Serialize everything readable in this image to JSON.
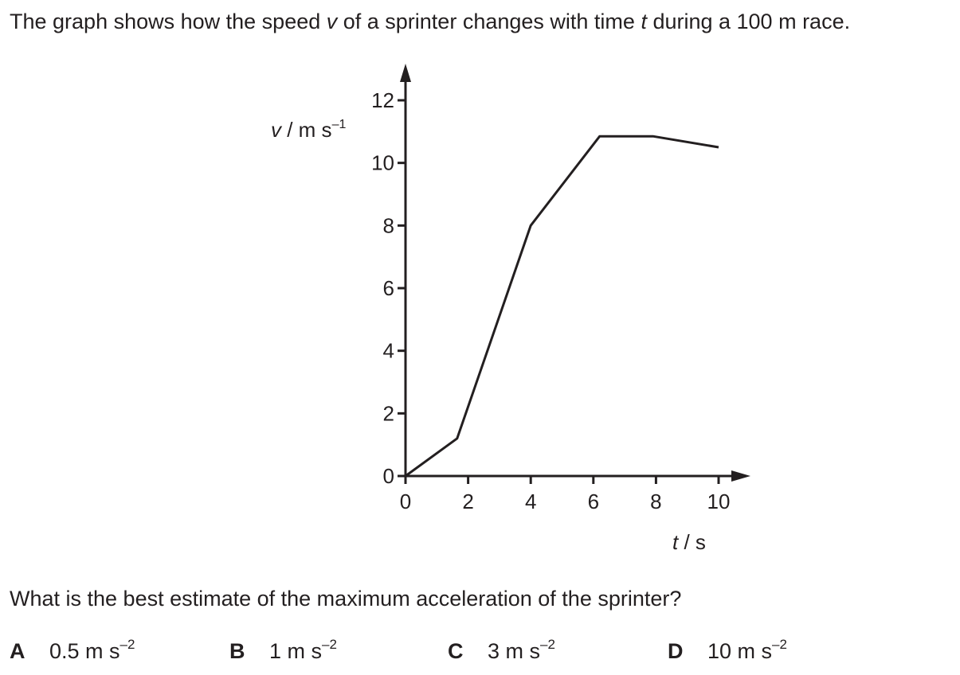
{
  "intro": {
    "part1": "The graph shows how the speed ",
    "v_symbol": "v",
    "part2": " of a sprinter changes with time ",
    "t_symbol": "t",
    "part3": " during a 100 m race."
  },
  "question": "What is the best estimate of the maximum acceleration of the sprinter?",
  "options": [
    {
      "letter": "A",
      "value": "0.5 m s",
      "exponent": "–2"
    },
    {
      "letter": "B",
      "value": "1 m s",
      "exponent": "–2"
    },
    {
      "letter": "C",
      "value": "3 m s",
      "exponent": "–2"
    },
    {
      "letter": "D",
      "value": "10 m s",
      "exponent": "–2"
    }
  ],
  "chart_data": {
    "type": "line",
    "ylabel": {
      "symbol": "v",
      "unit": " / m s",
      "exponent": "–1"
    },
    "xlabel": {
      "symbol": "t",
      "unit": " / s"
    },
    "xlim": [
      0,
      10
    ],
    "ylim": [
      0,
      12
    ],
    "x_ticks": [
      0,
      2,
      4,
      6,
      8,
      10
    ],
    "y_ticks": [
      0,
      2,
      4,
      6,
      8,
      10,
      12
    ],
    "x_tick_labels": [
      "0",
      "2",
      "4",
      "6",
      "8",
      "10"
    ],
    "y_tick_labels": [
      "0",
      "2",
      "4",
      "6",
      "8",
      "10",
      "12"
    ],
    "grid": false,
    "series": [
      {
        "x": [
          0,
          1.65,
          4.0,
          6.2,
          7.9,
          10.0
        ],
        "y": [
          0,
          1.2,
          8.0,
          10.85,
          10.85,
          10.5
        ]
      }
    ]
  }
}
